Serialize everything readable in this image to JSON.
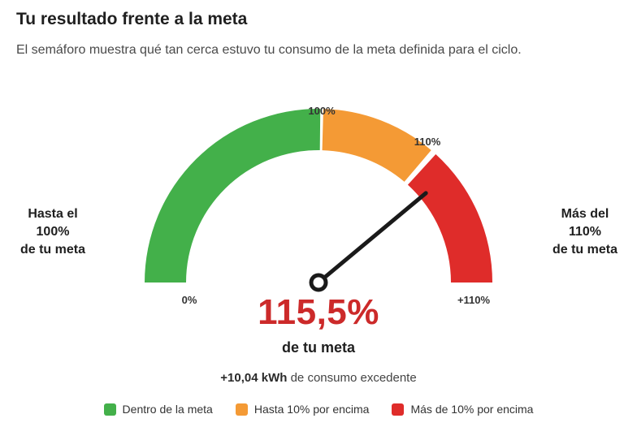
{
  "header": {
    "title": "Tu resultado frente a la meta",
    "subtitle": "El semáforo muestra qué tan cerca estuvo tu consumo de la meta definida para el ciclo."
  },
  "side_labels": {
    "left": [
      "Hasta el",
      "100%",
      "de tu meta"
    ],
    "right": [
      "Más del",
      "110%",
      "de tu meta"
    ]
  },
  "gauge": {
    "value_percent": 115.5,
    "scale_min_label": "0%",
    "scale_100_label": "100%",
    "scale_110_label": "110%",
    "scale_max_label": "+110%",
    "colors": {
      "green": "#43b04a",
      "orange": "#f49a35",
      "red": "#df2c2a",
      "needle": "#1a1a1a"
    }
  },
  "result": {
    "value_text": "115,5%",
    "caption": "de tu meta",
    "excess_value": "+10,04 kWh",
    "excess_text": " de consumo excedente"
  },
  "legend": [
    {
      "label": "Dentro de la meta",
      "color": "#43b04a"
    },
    {
      "label": "Hasta 10% por encima",
      "color": "#f49a35"
    },
    {
      "label": "Más de 10% por encima",
      "color": "#df2c2a"
    }
  ]
}
